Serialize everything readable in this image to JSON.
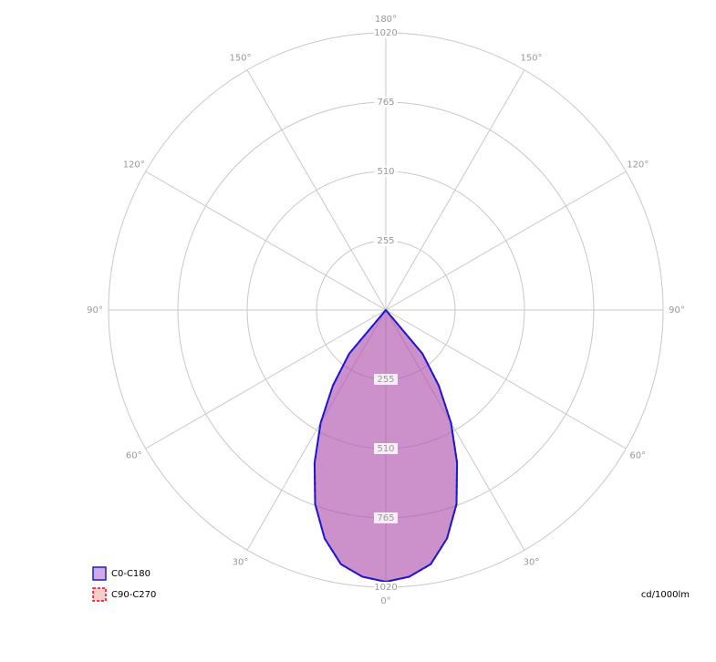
{
  "chart_data": {
    "type": "polar",
    "unit_label": "cd/1000lm",
    "rlim": [
      0,
      1020
    ],
    "rticks": [
      255,
      510,
      765,
      1020
    ],
    "angle_ticks": [
      {
        "value": 0,
        "label": "0°"
      },
      {
        "value": 30,
        "label": "30°"
      },
      {
        "value": 60,
        "label": "60°"
      },
      {
        "value": 90,
        "label": "90°"
      },
      {
        "value": 120,
        "label": "120°"
      },
      {
        "value": 150,
        "label": "150°"
      },
      {
        "value": 180,
        "label": "180°"
      }
    ],
    "angles": [
      -45,
      -40,
      -35,
      -30,
      -25,
      -20,
      -15,
      -10,
      -5,
      0,
      5,
      10,
      15,
      20,
      25,
      30,
      35,
      40,
      45
    ],
    "series": [
      {
        "name": "C90-C270",
        "color": "#ff0000",
        "fill": "rgba(235,110,110,0.35)",
        "dashed": true,
        "values": [
          0,
          210,
          340,
          480,
          620,
          760,
          870,
          950,
          985,
          1000,
          985,
          950,
          870,
          760,
          620,
          480,
          340,
          210,
          0
        ]
      },
      {
        "name": "C0-C180",
        "color": "#1a1ad6",
        "fill": "rgba(150,70,200,0.45)",
        "dashed": false,
        "values": [
          0,
          210,
          340,
          480,
          620,
          760,
          870,
          950,
          985,
          1000,
          985,
          950,
          870,
          760,
          620,
          480,
          340,
          210,
          0
        ]
      }
    ],
    "grid": true
  }
}
